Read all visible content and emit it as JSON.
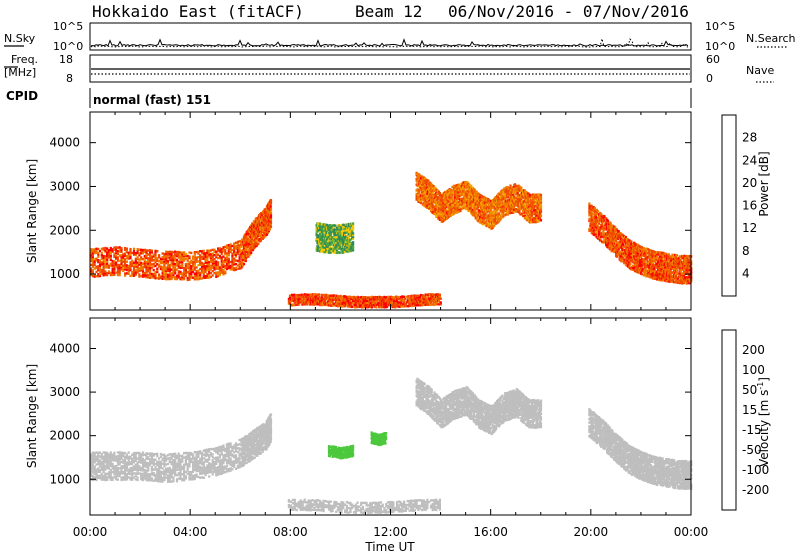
{
  "header": {
    "station": "Hokkaido East (fitACF)",
    "beam": "Beam 12",
    "date_range": "06/Nov/2016 - 07/Nov/2016"
  },
  "noise_panel": {
    "left_label": "N.Sky",
    "right_label": "N.Search",
    "ticks_left": [
      "10^5",
      "10^0"
    ],
    "ticks_right": [
      "10^5",
      "10^0"
    ]
  },
  "freq_panel": {
    "label_top": "Freq.",
    "label_unit": "[MHz]",
    "ticks_left": [
      "18",
      "8"
    ],
    "ticks_right": [
      "60",
      "0"
    ],
    "right_label": "Nave"
  },
  "cpid": {
    "label": "CPID",
    "value": "normal (fast) 151"
  },
  "colors": {
    "power": [
      "#0000ff",
      "#1e50b4",
      "#2f8a5a",
      "#4aa63c",
      "#f5c800",
      "#f5a000",
      "#f07800",
      "#f04a00",
      "#ff0000"
    ],
    "velocity": [
      "#1a2cc8",
      "#2a5aa8",
      "#2f8a5a",
      "#4cc83c",
      "#bebebe",
      "#bebebe",
      "#f5b400",
      "#f58c00",
      "#f55a00",
      "#ff0000"
    ]
  },
  "chart_data": [
    {
      "type": "heatmap",
      "name": "power",
      "xlabel": "",
      "ylabel": "Slant Range [km]",
      "yticks": [
        "1000",
        "2000",
        "3000",
        "4000"
      ],
      "ylim": [
        180,
        4700
      ],
      "xlim": [
        0,
        24
      ],
      "colorbar": {
        "label": "Power [dB]",
        "ticks": [
          "4",
          "8",
          "12",
          "16",
          "20",
          "24",
          "28"
        ],
        "range": [
          0,
          32
        ]
      },
      "echo_bands": [
        {
          "x": [
            0,
            1,
            2,
            3,
            4,
            5,
            6,
            6.5,
            7,
            7.2
          ],
          "y": [
            1250,
            1300,
            1250,
            1200,
            1180,
            1250,
            1450,
            1900,
            2200,
            2400
          ],
          "value": 26
        },
        {
          "x": [
            13,
            13.5,
            14,
            14.5,
            15,
            15.5,
            16,
            16.5,
            17,
            17.5,
            18
          ],
          "y": [
            3000,
            2800,
            2500,
            2700,
            2800,
            2500,
            2350,
            2650,
            2750,
            2500,
            2500
          ],
          "value": 24
        },
        {
          "x": [
            19.9,
            20.5,
            21,
            21.5,
            22,
            22.5,
            23,
            23.5,
            24
          ],
          "y": [
            2300,
            2000,
            1700,
            1450,
            1300,
            1200,
            1150,
            1100,
            1100
          ],
          "value": 26
        },
        {
          "x": [
            7.9,
            8.5,
            9,
            9.5,
            10,
            10.5,
            11,
            11.5,
            12,
            12.5,
            13,
            13.5,
            14
          ],
          "y": [
            400,
            420,
            420,
            400,
            380,
            360,
            360,
            360,
            360,
            370,
            400,
            420,
            420
          ],
          "value": 27
        },
        {
          "x": [
            9,
            9.5,
            10,
            10.5
          ],
          "y": [
            1850,
            1800,
            1800,
            1850
          ],
          "value": 12
        }
      ]
    },
    {
      "type": "heatmap",
      "name": "velocity",
      "xlabel": "Time UT",
      "ylabel": "Slant Range [km]",
      "yticks": [
        "1000",
        "2000",
        "3000",
        "4000"
      ],
      "ylim": [
        180,
        4700
      ],
      "xlim": [
        0,
        24
      ],
      "xticks": [
        "00:00",
        "04:00",
        "08:00",
        "12:00",
        "16:00",
        "20:00",
        "00:00"
      ],
      "colorbar": {
        "label": "Velocity [m s",
        "label_sup": "-1",
        "label_close": "]",
        "ticks": [
          "200",
          "100",
          "50",
          "15",
          "-15",
          "-50",
          "-100",
          "-200"
        ],
        "range": [
          -250,
          250
        ]
      },
      "echo_bands": [
        {
          "x": [
            0,
            1,
            2,
            3,
            4,
            5,
            6,
            6.5,
            7,
            7.2
          ],
          "y": [
            1300,
            1300,
            1300,
            1250,
            1300,
            1400,
            1600,
            1800,
            2000,
            2200
          ],
          "value": 0
        },
        {
          "x": [
            13,
            13.5,
            14,
            14.5,
            15,
            15.5,
            16,
            16.5,
            17,
            17.5,
            18
          ],
          "y": [
            3000,
            2800,
            2500,
            2700,
            2800,
            2500,
            2350,
            2650,
            2750,
            2500,
            2500
          ],
          "value": 0
        },
        {
          "x": [
            19.9,
            20.5,
            21,
            21.5,
            22,
            22.5,
            23,
            23.5,
            24
          ],
          "y": [
            2300,
            2000,
            1700,
            1450,
            1300,
            1200,
            1150,
            1100,
            1100
          ],
          "value": 0
        },
        {
          "x": [
            7.9,
            9,
            10,
            11,
            12,
            13,
            14
          ],
          "y": [
            420,
            400,
            360,
            340,
            360,
            400,
            420
          ],
          "value": -30
        },
        {
          "x": [
            9.5,
            10,
            10.5
          ],
          "y": [
            1650,
            1600,
            1650
          ],
          "value": -60
        },
        {
          "x": [
            11.2,
            11.5,
            11.8
          ],
          "y": [
            1950,
            1900,
            1950
          ],
          "value": -70
        }
      ]
    }
  ]
}
